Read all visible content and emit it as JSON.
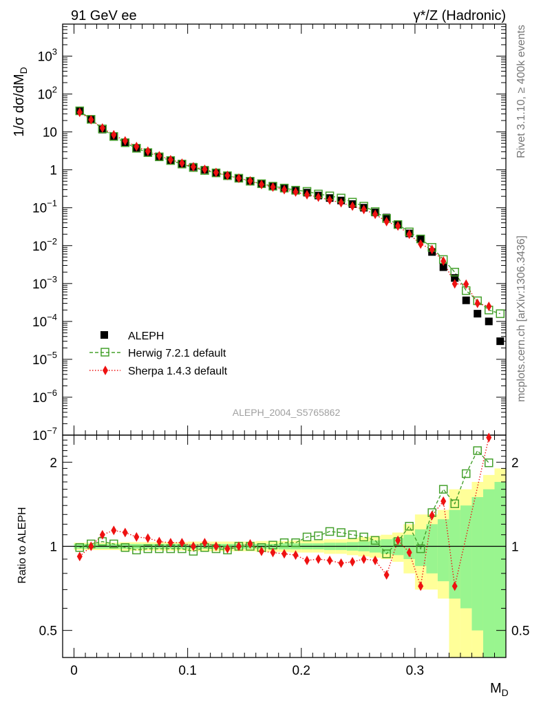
{
  "header": {
    "left": "91 GeV ee",
    "right": "γ*/Z (Hadronic)"
  },
  "side_text": {
    "rivet": "Rivet 3.1.10, ≥ 400k events",
    "site": "mcplots.cern.ch [arXiv:1306.3436]"
  },
  "analysis_label": "ALEPH_2004_S5765862",
  "chart_data": [
    {
      "type": "scatter",
      "panel": "main",
      "ylabel": "1/σ dσ/dM_D",
      "yscale": "log",
      "xlim": [
        -0.01,
        0.38
      ],
      "ylim": [
        1e-07,
        7000
      ],
      "legend_position": "lower-left",
      "x_ticks": [
        0,
        0.1,
        0.2,
        0.3
      ],
      "y_ticks": [
        {
          "v": 1000.0,
          "base": "10",
          "exp": "3"
        },
        {
          "v": 100.0,
          "base": "10",
          "exp": "2"
        },
        {
          "v": 10,
          "base": "10",
          "exp": ""
        },
        {
          "v": 1,
          "base": "1",
          "exp": ""
        },
        {
          "v": 0.1,
          "base": "10",
          "exp": "−1"
        },
        {
          "v": 0.01,
          "base": "10",
          "exp": "−2"
        },
        {
          "v": 0.001,
          "base": "10",
          "exp": "−3"
        },
        {
          "v": 0.0001,
          "base": "10",
          "exp": "−4"
        },
        {
          "v": 1e-05,
          "base": "10",
          "exp": "−5"
        },
        {
          "v": 1e-06,
          "base": "10",
          "exp": "−6"
        },
        {
          "v": 1e-07,
          "base": "10",
          "exp": "−7"
        }
      ],
      "x": [
        0.005,
        0.015,
        0.025,
        0.035,
        0.045,
        0.055,
        0.065,
        0.075,
        0.085,
        0.095,
        0.105,
        0.115,
        0.125,
        0.135,
        0.145,
        0.155,
        0.165,
        0.175,
        0.185,
        0.195,
        0.205,
        0.215,
        0.225,
        0.235,
        0.245,
        0.255,
        0.265,
        0.275,
        0.285,
        0.295,
        0.305,
        0.315,
        0.325,
        0.335,
        0.345,
        0.355,
        0.365,
        0.375
      ],
      "series": [
        {
          "name": "ALEPH",
          "color": "#000000",
          "values": [
            36,
            21,
            11.5,
            7.4,
            5.2,
            3.8,
            2.9,
            2.25,
            1.8,
            1.45,
            1.2,
            1.0,
            0.85,
            0.72,
            0.6,
            0.5,
            0.43,
            0.37,
            0.32,
            0.28,
            0.25,
            0.21,
            0.18,
            0.155,
            0.125,
            0.1,
            0.075,
            0.055,
            0.036,
            0.021,
            0.015,
            0.0068,
            0.0027,
            0.0014,
            0.00036,
            0.00016,
            0.0001,
            3e-05
          ]
        },
        {
          "name": "Herwig 7.2.1 default",
          "color": "#44a02c",
          "values": [
            36,
            21.5,
            12,
            7.6,
            5.2,
            3.7,
            2.85,
            2.2,
            1.76,
            1.42,
            1.15,
            0.96,
            0.83,
            0.7,
            0.6,
            0.5,
            0.43,
            0.37,
            0.33,
            0.29,
            0.27,
            0.23,
            0.205,
            0.18,
            0.14,
            0.11,
            0.079,
            0.052,
            0.036,
            0.023,
            0.015,
            0.009,
            0.0043,
            0.002,
            0.00065,
            0.00035,
            0.0002,
            0.00016
          ]
        },
        {
          "name": "Sherpa 1.4.3 default",
          "color": "#ee1111",
          "values": [
            33,
            21,
            12.7,
            8.4,
            5.8,
            4.1,
            3.1,
            2.35,
            1.85,
            1.5,
            1.2,
            1.03,
            0.85,
            0.71,
            0.6,
            0.51,
            0.41,
            0.35,
            0.3,
            0.26,
            0.22,
            0.19,
            0.16,
            0.135,
            0.11,
            0.09,
            0.067,
            0.043,
            0.033,
            0.02,
            0.011,
            0.0079,
            0.0039,
            0.00098,
            0.00096,
            0.0003,
            0.00025,
            0.0
          ]
        }
      ]
    },
    {
      "type": "scatter",
      "panel": "ratio",
      "ylabel": "Ratio to ALEPH",
      "xlabel": "M_D",
      "yscale": "log",
      "xlim": [
        -0.01,
        0.38
      ],
      "ylim": [
        0.4,
        2.5
      ],
      "x_tick_labels": [
        "0",
        "0.1",
        "0.2",
        "0.3"
      ],
      "y_tick_labels": [
        "0.5",
        "1",
        "2"
      ],
      "y_ticks": [
        0.5,
        1,
        2
      ],
      "reference_line": 1,
      "band_inner_color": "#99f58f",
      "band_outer_color": "#ffff99",
      "band_inner_halfwidth": [
        0.02,
        0.02,
        0.02,
        0.02,
        0.02,
        0.02,
        0.02,
        0.02,
        0.02,
        0.02,
        0.02,
        0.02,
        0.02,
        0.02,
        0.02,
        0.02,
        0.02,
        0.02,
        0.025,
        0.025,
        0.025,
        0.025,
        0.03,
        0.03,
        0.035,
        0.04,
        0.05,
        0.06,
        0.07,
        0.1,
        0.15,
        0.2,
        0.25,
        0.35,
        0.4,
        0.5,
        0.6,
        0.7
      ],
      "band_outer_halfwidth": [
        0.03,
        0.03,
        0.03,
        0.03,
        0.035,
        0.035,
        0.035,
        0.035,
        0.035,
        0.035,
        0.04,
        0.04,
        0.04,
        0.04,
        0.04,
        0.04,
        0.045,
        0.045,
        0.045,
        0.05,
        0.05,
        0.05,
        0.06,
        0.06,
        0.07,
        0.08,
        0.09,
        0.1,
        0.12,
        0.2,
        0.3,
        0.3,
        0.35,
        0.6,
        0.6,
        0.7,
        0.8,
        0.9
      ],
      "series": [
        {
          "name": "Herwig 7.2.1 default",
          "values": [
            0.99,
            1.02,
            1.04,
            1.02,
            0.99,
            0.97,
            0.98,
            0.98,
            0.98,
            0.98,
            0.96,
            0.99,
            0.98,
            0.97,
            1.0,
            1.0,
            0.99,
            1.01,
            1.03,
            1.03,
            1.08,
            1.09,
            1.13,
            1.12,
            1.1,
            1.08,
            1.05,
            0.94,
            1.04,
            1.18,
            0.98,
            1.32,
            1.6,
            1.42,
            1.82,
            2.2,
            1.99,
            0
          ]
        },
        {
          "name": "Sherpa 1.4.3 default",
          "values": [
            0.92,
            1.0,
            1.1,
            1.14,
            1.12,
            1.08,
            1.07,
            1.04,
            1.03,
            1.03,
            1.0,
            1.03,
            1.0,
            0.98,
            1.0,
            1.02,
            0.96,
            0.95,
            0.94,
            0.93,
            0.89,
            0.9,
            0.89,
            0.87,
            0.88,
            0.9,
            0.89,
            0.79,
            1.05,
            0.95,
            0.72,
            1.29,
            1.45,
            0.72,
            0,
            0,
            2.45,
            0
          ]
        }
      ]
    }
  ],
  "axis_labels": {
    "ylabel_main_a": "1/σ  dσ/dM",
    "ylabel_main_sub": "D",
    "xlabel_main": "M",
    "xlabel_sub": "D"
  }
}
